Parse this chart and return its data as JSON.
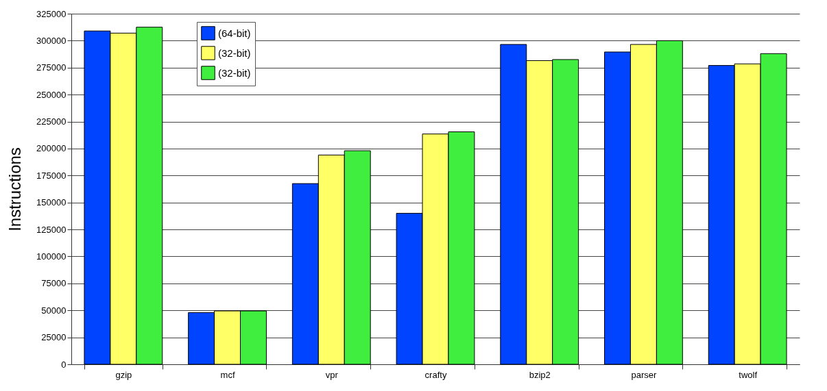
{
  "chart_data": {
    "type": "bar",
    "ylabel": "Instructions",
    "categories": [
      "gzip",
      "mcf",
      "vpr",
      "crafty",
      "bzip2",
      "parser",
      "twolf"
    ],
    "series": [
      {
        "name": "(64-bit)",
        "color": "#0044ff",
        "values": [
          309000,
          48000,
          167500,
          140000,
          296500,
          289500,
          277000
        ]
      },
      {
        "name": "(32-bit)",
        "color": "#ffff66",
        "values": [
          307000,
          49500,
          194000,
          213500,
          281500,
          296500,
          278500
        ]
      },
      {
        "name": "(32-bit)",
        "color": "#40ee40",
        "values": [
          312500,
          49500,
          198000,
          215500,
          282500,
          300000,
          288000
        ]
      }
    ],
    "ylim": [
      0,
      325000
    ],
    "yticks": [
      0,
      25000,
      50000,
      75000,
      100000,
      125000,
      150000,
      175000,
      200000,
      225000,
      250000,
      275000,
      300000,
      325000
    ],
    "grid": "y",
    "legend": "top left"
  }
}
